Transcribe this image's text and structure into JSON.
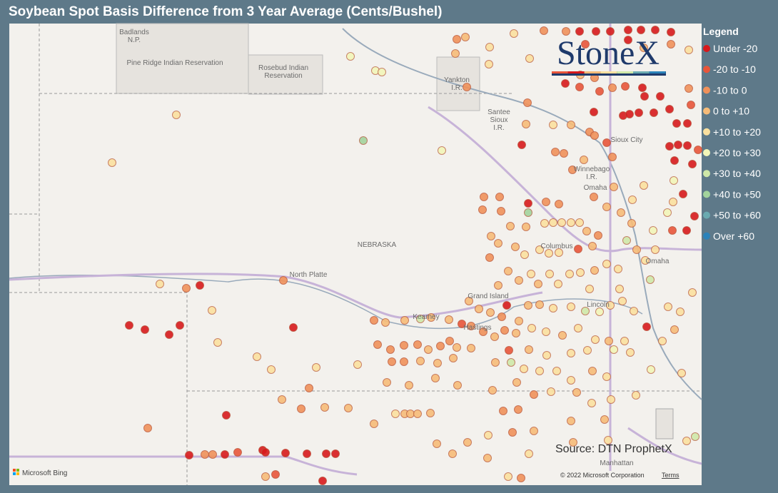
{
  "title": "Soybean Spot Basis Difference from 3 Year Average (Cents/Bushel)",
  "legend": {
    "title": "Legend",
    "items": [
      {
        "label": "Under -20",
        "color": "#d7191c"
      },
      {
        "label": "-20 to -10",
        "color": "#e8553a"
      },
      {
        "label": "-10 to 0",
        "color": "#f0915a"
      },
      {
        "label": "0 to +10",
        "color": "#f6bb78"
      },
      {
        "label": "+10 to +20",
        "color": "#fbe09f"
      },
      {
        "label": "+20 to +30",
        "color": "#f2f5b8"
      },
      {
        "label": "+30 to +40",
        "color": "#cfe8a8"
      },
      {
        "label": "+40 to +50",
        "color": "#a3d39c"
      },
      {
        "label": "+50 to +60",
        "color": "#6aaab0"
      },
      {
        "label": "Over +60",
        "color": "#2b83ba"
      }
    ]
  },
  "map": {
    "labels": [
      {
        "lines": [
          "Badlands",
          "N.P."
        ]
      },
      {
        "lines": [
          "Pine Ridge Indian Reservation"
        ]
      },
      {
        "lines": [
          "Rosebud Indian",
          "Reservation"
        ]
      },
      {
        "lines": [
          "Yankton",
          "I.R."
        ]
      },
      {
        "lines": [
          "Santee",
          "Sioux",
          "I.R."
        ]
      },
      {
        "lines": [
          "Sioux City"
        ]
      },
      {
        "lines": [
          "Winnebago",
          "I.R."
        ]
      },
      {
        "lines": [
          "Omaha"
        ]
      },
      {
        "lines": [
          "NEBRASKA"
        ]
      },
      {
        "lines": [
          "North Platte"
        ]
      },
      {
        "lines": [
          "Columbus"
        ]
      },
      {
        "lines": [
          "Omaha"
        ]
      },
      {
        "lines": [
          "Grand Island"
        ]
      },
      {
        "lines": [
          "Kearney"
        ]
      },
      {
        "lines": [
          "Hastings"
        ]
      },
      {
        "lines": [
          "Lincoln"
        ]
      },
      {
        "lines": [
          "Manhattan"
        ]
      }
    ]
  },
  "logo": "StoneX",
  "source": "Source: DTN ProphetX",
  "attribution": "© 2022 Microsoft Corporation",
  "terms": "Terms",
  "bing": "Microsoft Bing"
}
